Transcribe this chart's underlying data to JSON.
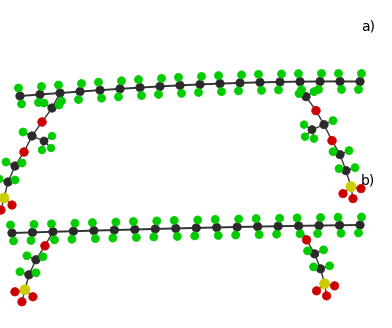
{
  "fig_width": 3.92,
  "fig_height": 3.28,
  "dpi": 100,
  "bg_color": "#ffffff",
  "label_a": "a)",
  "label_b": "b)",
  "label_fontsize": 10,
  "colors": {
    "C": "#2a2a2a",
    "F": "#00cc00",
    "O": "#cc0000",
    "S": "#cccc00"
  }
}
